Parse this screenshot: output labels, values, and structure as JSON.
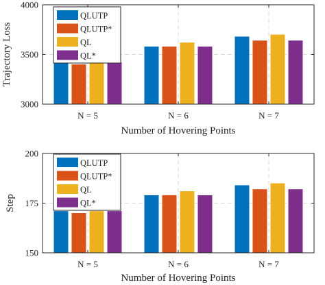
{
  "chart_data": [
    {
      "type": "bar",
      "categories": [
        "N = 5",
        "N = 6",
        "N = 7"
      ],
      "series": [
        {
          "name": "QLUTP",
          "color": "#0072BD",
          "values": [
            3420,
            3580,
            3680
          ]
        },
        {
          "name": "QLUTP*",
          "color": "#D95319",
          "values": [
            3400,
            3580,
            3640
          ]
        },
        {
          "name": "QL",
          "color": "#EDB120",
          "values": [
            3420,
            3620,
            3700
          ]
        },
        {
          "name": "QL*",
          "color": "#7E2F8E",
          "values": [
            3420,
            3580,
            3640
          ]
        }
      ],
      "xlabel": "Number of Hovering Points",
      "ylabel": "Trajectory Loss",
      "ylim": [
        3000,
        4000
      ],
      "yticks": [
        "3000",
        "3500",
        "4000"
      ],
      "grid": true,
      "legend_position": "top-left"
    },
    {
      "type": "bar",
      "categories": [
        "N = 5",
        "N = 6",
        "N = 7"
      ],
      "series": [
        {
          "name": "QLUTP",
          "color": "#0072BD",
          "values": [
            171,
            179,
            184
          ]
        },
        {
          "name": "QLUTP*",
          "color": "#D95319",
          "values": [
            170,
            179,
            182
          ]
        },
        {
          "name": "QL",
          "color": "#EDB120",
          "values": [
            171,
            181,
            185
          ]
        },
        {
          "name": "QL*",
          "color": "#7E2F8E",
          "values": [
            171,
            179,
            182
          ]
        }
      ],
      "xlabel": "Number of Hovering Points",
      "ylabel": "Step",
      "ylim": [
        150,
        200
      ],
      "yticks": [
        "150",
        "175",
        "200"
      ],
      "grid": true,
      "legend_position": "top-left"
    }
  ]
}
